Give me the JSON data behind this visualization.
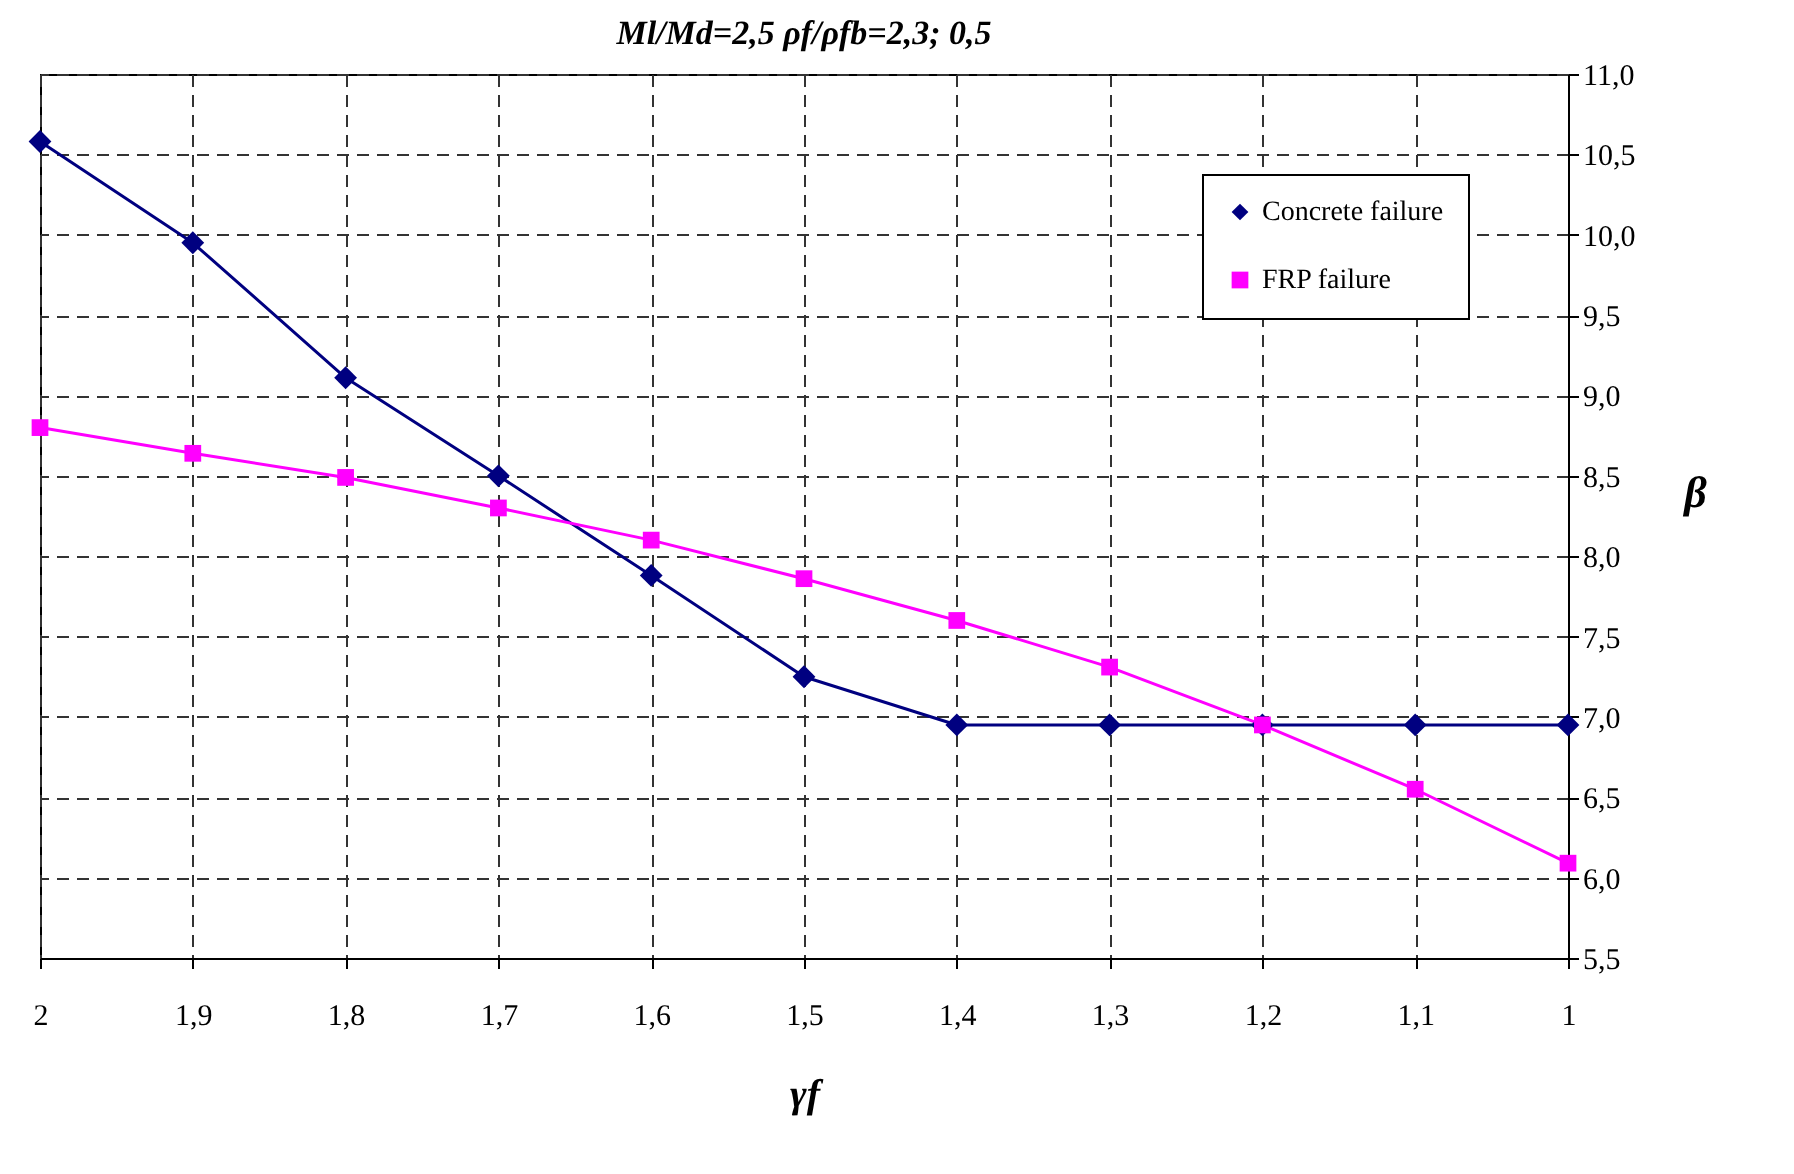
{
  "chart_data": {
    "type": "line",
    "title": "Ml/Md=2,5 ρf/ρfb=2,3; 0,5",
    "xlabel": "γf",
    "ylabel": "β",
    "x": [
      2,
      1.9,
      1.8,
      1.7,
      1.6,
      1.5,
      1.4,
      1.3,
      1.2,
      1.1,
      1
    ],
    "series": [
      {
        "name": "Concrete failure",
        "color": "#000080",
        "marker": "diamond",
        "values": [
          10.58,
          9.95,
          9.11,
          8.5,
          7.88,
          7.25,
          6.95,
          6.95,
          6.95,
          6.95,
          6.95
        ]
      },
      {
        "name": "FRP failure",
        "color": "#ff00ff",
        "marker": "square",
        "values": [
          8.8,
          8.64,
          8.49,
          8.3,
          8.1,
          7.86,
          7.6,
          7.31,
          6.95,
          6.55,
          6.09
        ]
      }
    ],
    "xlim": [
      2,
      1
    ],
    "xticks": [
      2,
      {
        "value": 1.9,
        "label": "1,9"
      },
      {
        "value": 1.8,
        "label": "1,8"
      },
      {
        "value": 1.7,
        "label": "1,7"
      },
      {
        "value": 1.6,
        "label": "1,6"
      },
      {
        "value": 1.5,
        "label": "1,5"
      },
      {
        "value": 1.4,
        "label": "1,4"
      },
      {
        "value": 1.3,
        "label": "1,3"
      },
      {
        "value": 1.2,
        "label": "1,2"
      },
      {
        "value": 1.1,
        "label": "1,1"
      },
      1
    ],
    "ylim": [
      5.5,
      11
    ],
    "yticks": [
      {
        "value": 5.5,
        "label": "5,5"
      },
      {
        "value": 6,
        "label": "6,0"
      },
      {
        "value": 6.5,
        "label": "6,5"
      },
      {
        "value": 7,
        "label": "7,0"
      },
      {
        "value": 7.5,
        "label": "7,5"
      },
      {
        "value": 8,
        "label": "8,0"
      },
      {
        "value": 8.5,
        "label": "8,5"
      },
      {
        "value": 9,
        "label": "9,0"
      },
      {
        "value": 9.5,
        "label": "9,5"
      },
      {
        "value": 10,
        "label": "10,0"
      },
      {
        "value": 10.5,
        "label": "10,5"
      },
      {
        "value": 11,
        "label": "11,0"
      }
    ],
    "grid": true,
    "legend": "top right",
    "line_style": "solid"
  }
}
